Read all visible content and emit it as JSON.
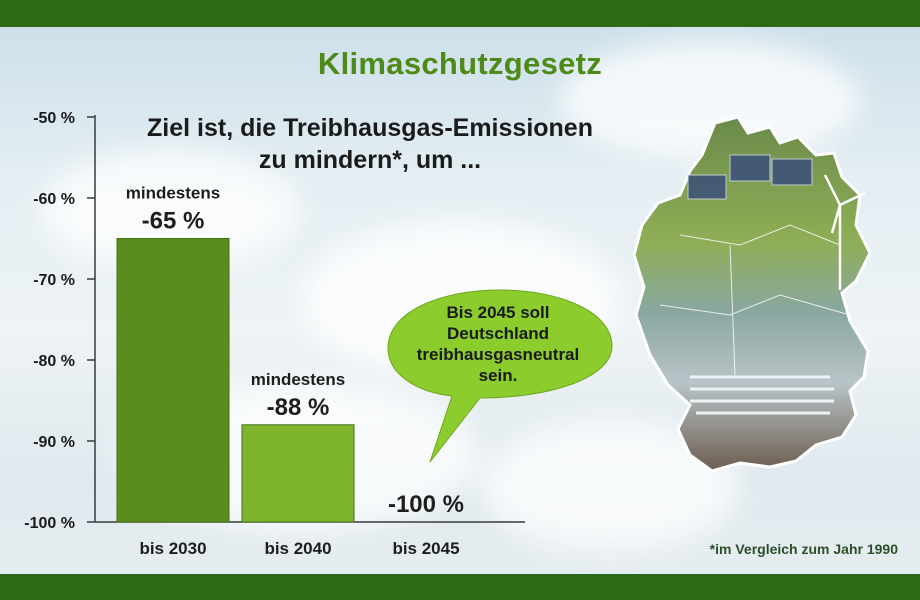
{
  "title": "Klimaschutzgesetz",
  "subtitle_lines": [
    "Ziel ist, die Treibhausgas-Emissionen",
    "zu mindern*, um ..."
  ],
  "callout_lines": [
    "Bis 2045 soll",
    "Deutschland",
    "treibhausgasneutral",
    "sein."
  ],
  "footnote": "*im Vergleich zum Jahr 1990",
  "chart_data": {
    "type": "bar",
    "categories": [
      "bis 2030",
      "bis 2040",
      "bis 2045"
    ],
    "values": [
      -65,
      -88,
      -100
    ],
    "prefix_labels": [
      "mindestens",
      "mindestens",
      ""
    ],
    "value_labels": [
      "-65 %",
      "-88 %",
      "-100 %"
    ],
    "yticks": [
      "-50 %",
      "-60 %",
      "-70 %",
      "-80 %",
      "-90 %",
      "-100 %"
    ],
    "ytick_values": [
      -50,
      -60,
      -70,
      -80,
      -90,
      -100
    ],
    "ylim": [
      -100,
      -50
    ],
    "grid": false,
    "colors": [
      "#5a8c1e",
      "#7fb52c",
      "#7fb52c"
    ]
  },
  "colors": {
    "band": "#2f6b16",
    "title": "#4d8a17",
    "bubble": "#8ccc2d"
  }
}
